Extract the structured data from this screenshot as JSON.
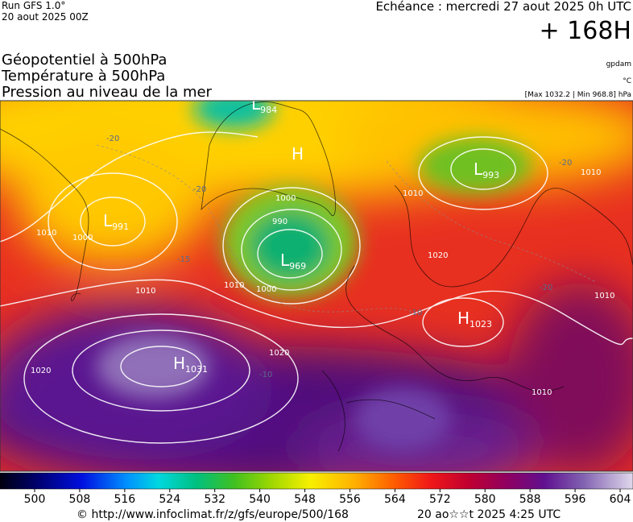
{
  "header": {
    "run": "Run GFS 1.0°",
    "run_date": "20 aout 2025 00Z",
    "echeance": "Echéance : mercredi 27 aout 2025 0h UTC",
    "lead": "+ 168H",
    "titles": [
      "Géopotentiel à 500hPa",
      "Température à 500hPa",
      "Pression au niveau de la mer"
    ],
    "units": [
      "gpdam",
      "°C",
      "[Max 1032.2 | Min 968.8] hPa"
    ]
  },
  "centers": [
    {
      "letter": "L",
      "value": 984
    },
    {
      "letter": "H"
    },
    {
      "letter": "L",
      "value": 991
    },
    {
      "letter": "L",
      "value": 969
    },
    {
      "letter": "L",
      "value": 993
    },
    {
      "letter": "H",
      "value": 1023
    },
    {
      "letter": "H",
      "value": 1031
    }
  ],
  "isobar_labels": [
    1010,
    1000,
    1010,
    1010,
    990,
    1000,
    1000,
    1020,
    1020,
    1010,
    1020,
    1010,
    1010,
    1010
  ],
  "temperature_labels": [
    -20,
    -20,
    -15,
    -20,
    -10,
    -10,
    -20
  ],
  "colorbar": {
    "ticks": [
      500,
      508,
      516,
      524,
      532,
      540,
      548,
      556,
      564,
      572,
      580,
      588,
      596,
      604
    ]
  },
  "footer": {
    "source": "© http://www.infoclimat.fr/z/gfs/europe/500/168",
    "time": "20 ao☆☆t 2025  4:25 UTC"
  }
}
